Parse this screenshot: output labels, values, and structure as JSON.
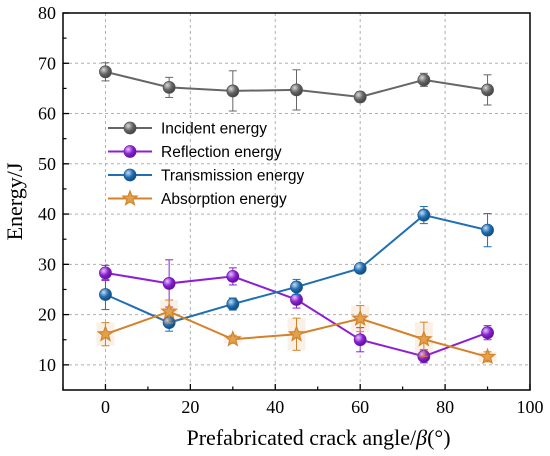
{
  "chart_data": {
    "type": "line",
    "title": "",
    "xlabel": "Prefabricated crack angle/",
    "xlabel_symbol": "β",
    "xlabel_unit": "(°)",
    "ylabel": "Energy/J",
    "xlim": [
      -10,
      100
    ],
    "ylim": [
      5,
      80
    ],
    "xticks": [
      0,
      20,
      40,
      60,
      80,
      100
    ],
    "yticks": [
      10,
      20,
      30,
      40,
      50,
      60,
      70,
      80
    ],
    "grid": true,
    "legend_position": "center-left",
    "x": [
      0,
      15,
      30,
      45,
      60,
      75,
      90
    ],
    "series": [
      {
        "name": "Incident energy",
        "color": "#666666",
        "marker": "sphere",
        "values": [
          68.3,
          65.2,
          64.5,
          64.7,
          63.3,
          66.7,
          64.7
        ],
        "errors": [
          1.8,
          2.0,
          4.0,
          4.0,
          1.0,
          1.3,
          3.0
        ]
      },
      {
        "name": "Reflection energy",
        "color": "#8c1fd6",
        "marker": "sphere",
        "values": [
          28.3,
          26.2,
          27.6,
          23.0,
          15.0,
          11.7,
          16.4
        ],
        "errors": [
          1.5,
          4.7,
          1.7,
          1.7,
          2.4,
          1.3,
          1.4
        ]
      },
      {
        "name": "Transmission energy",
        "color": "#1f6fb5",
        "marker": "sphere",
        "values": [
          24.0,
          18.4,
          22.1,
          25.5,
          29.2,
          39.8,
          36.8
        ],
        "errors": [
          3.0,
          1.7,
          1.2,
          1.5,
          0.6,
          1.7,
          3.3
        ]
      },
      {
        "name": "Absorption energy",
        "color": "#d4822a",
        "marker": "star",
        "values": [
          16.1,
          20.6,
          15.1,
          16.1,
          19.2,
          15.1,
          11.6
        ],
        "errors": [
          2.3,
          2.3,
          0.8,
          3.2,
          2.6,
          3.4,
          1.0
        ]
      }
    ]
  }
}
